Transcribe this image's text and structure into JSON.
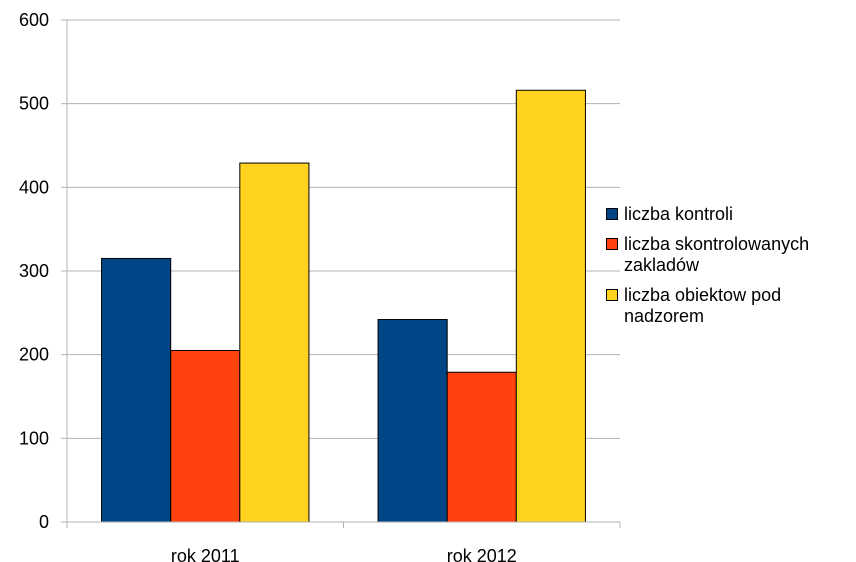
{
  "chart_data": {
    "type": "bar",
    "categories": [
      "rok 2011",
      "rok 2012"
    ],
    "series": [
      {
        "name": "liczba kontroli",
        "values": [
          315,
          242
        ],
        "color": "#004586"
      },
      {
        "name": "liczba skontrolowanych zakladów",
        "values": [
          205,
          179
        ],
        "color": "#ff420e"
      },
      {
        "name": "liczba obiektow pod nadzorem",
        "values": [
          429,
          516
        ],
        "color": "#ffd320"
      }
    ],
    "ylim": [
      0,
      600
    ],
    "yticks": [
      0,
      100,
      200,
      300,
      400,
      500,
      600
    ],
    "grid": true,
    "legend_position": "right",
    "title": "",
    "xlabel": "",
    "ylabel": ""
  }
}
